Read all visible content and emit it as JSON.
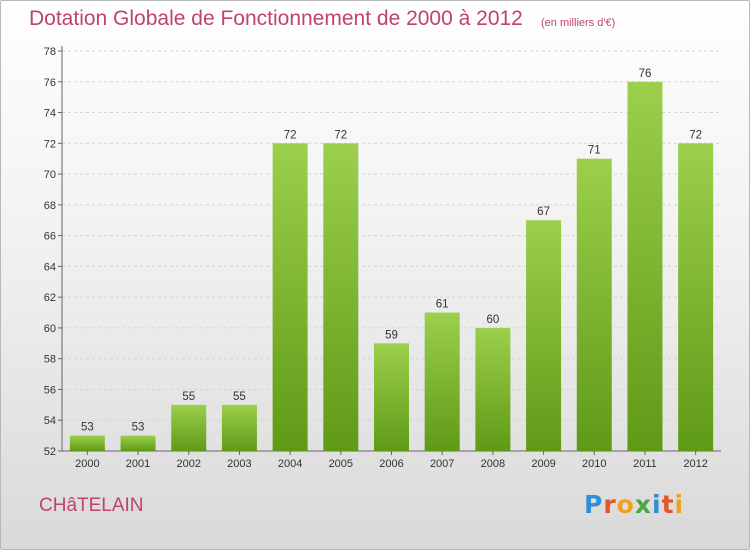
{
  "header": {
    "title": "Dotation Globale de Fonctionnement de 2000 à 2012",
    "subtitle": "(en milliers d'€)"
  },
  "footer": {
    "commune": "CHâTELAIN",
    "logo": "Proxiti"
  },
  "colors": {
    "title": "#c0436a",
    "bar_light": "#9ccf4c",
    "bar_dark": "#5f9a16",
    "logo_letters": [
      "#2f8fd8",
      "#e2562a",
      "#f0a020",
      "#49a83f",
      "#2f8fd8",
      "#e2562a",
      "#f0a020"
    ]
  },
  "chart_data": {
    "type": "bar",
    "categories": [
      "2000",
      "2001",
      "2002",
      "2003",
      "2004",
      "2005",
      "2006",
      "2007",
      "2008",
      "2009",
      "2010",
      "2011",
      "2012"
    ],
    "values": [
      53,
      53,
      55,
      55,
      72,
      72,
      59,
      61,
      60,
      67,
      71,
      76,
      72
    ],
    "title": "Dotation Globale de Fonctionnement de 2000 à 2012",
    "ylim": [
      52,
      78
    ],
    "yticks": [
      52,
      54,
      56,
      58,
      60,
      62,
      64,
      66,
      68,
      70,
      72,
      74,
      76,
      78
    ],
    "grid": true,
    "legend": "none"
  }
}
